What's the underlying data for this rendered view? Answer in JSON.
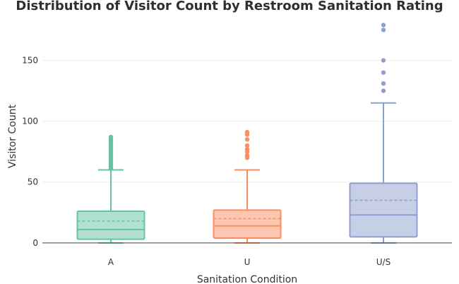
{
  "chart_data": {
    "type": "box",
    "title": "Distribution of Visitor Count by Restroom Sanitation Rating",
    "xlabel": "Sanitation Condition",
    "ylabel": "Visitor Count",
    "categories": [
      "A",
      "U",
      "U/S"
    ],
    "ylim": [
      -3,
      188
    ],
    "yticks": [
      0,
      50,
      100,
      150
    ],
    "grid": true,
    "legend": "none",
    "boxes": [
      {
        "category": "A",
        "color": "#66c2a5",
        "fill": "rgba(102, 194, 165, 0.5)",
        "min": 0,
        "q1": 3,
        "median": 11,
        "mean": 18,
        "q3": 26,
        "max": 60,
        "outliers": [
          61,
          62,
          63,
          64,
          65,
          66,
          67,
          68,
          69,
          70,
          71,
          72,
          73,
          74,
          75,
          76,
          77,
          78,
          79,
          80,
          81,
          82,
          83,
          84,
          85,
          86,
          87
        ]
      },
      {
        "category": "U",
        "color": "#fc8d62",
        "fill": "rgba(252, 141, 98, 0.5)",
        "min": 0,
        "q1": 4,
        "median": 14,
        "mean": 20,
        "q3": 27,
        "max": 60,
        "outliers": [
          70,
          72,
          75,
          77,
          80,
          85,
          89,
          91
        ]
      },
      {
        "category": "U/S",
        "color": "#8da0cb",
        "fill": "rgba(141, 160, 203, 0.5)",
        "min": 0,
        "q1": 5,
        "median": 23,
        "mean": 35,
        "q3": 49,
        "max": 115,
        "outliers": [
          125,
          131,
          140,
          150,
          175,
          179
        ]
      }
    ]
  }
}
